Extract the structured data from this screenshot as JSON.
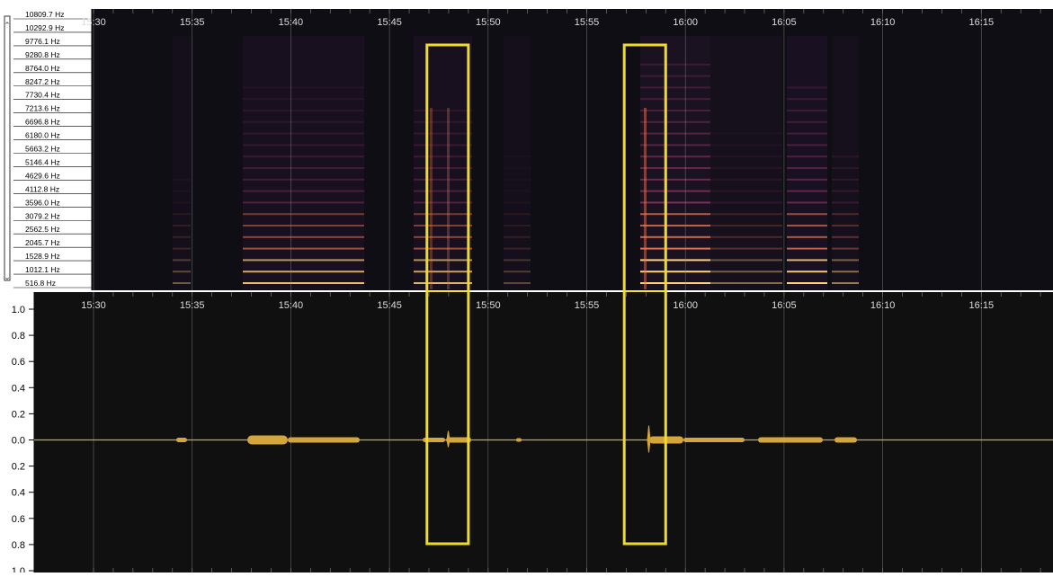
{
  "spectrogram": {
    "freq_labels": [
      "10809.7 Hz",
      "10292.9 Hz",
      "9776.1 Hz",
      "9280.8 Hz",
      "8764.0 Hz",
      "8247.2 Hz",
      "7730.4 Hz",
      "7213.6 Hz",
      "6696.8 Hz",
      "6180.0 Hz",
      "5663.2 Hz",
      "5146.4 Hz",
      "4629.6 Hz",
      "4112.8 Hz",
      "3596.0 Hz",
      "3079.2 Hz",
      "2562.5 Hz",
      "2045.7 Hz",
      "1528.9 Hz",
      "1012.1 Hz",
      "516.8 Hz"
    ],
    "time_labels": [
      "15:30",
      "15:35",
      "15:40",
      "15:45",
      "15:50",
      "15:55",
      "16:00",
      "16:05",
      "16:10",
      "16:15"
    ],
    "scroll_top_glyph": "⌃",
    "scroll_bottom_glyph": "⌄"
  },
  "waveform": {
    "amp_labels": [
      "1.0",
      "0.8",
      "0.6",
      "0.4",
      "0.2",
      "0.0",
      "0.2",
      "0.4",
      "0.6",
      "0.8",
      "1.0"
    ],
    "time_labels": [
      "15:30",
      "15:35",
      "15:40",
      "15:45",
      "15:50",
      "15:55",
      "16:00",
      "16:05",
      "16:10",
      "16:15"
    ]
  },
  "colors": {
    "background": "#101010",
    "grid": "#8a8a8a",
    "waveform": "#d4a53a",
    "highlight": "#f0dc28",
    "harmonic": "#f07a52"
  },
  "highlights": [
    {
      "start": "15:46.9",
      "end": "15:49.0"
    },
    {
      "start": "15:56.9",
      "end": "15:59.0"
    }
  ]
}
